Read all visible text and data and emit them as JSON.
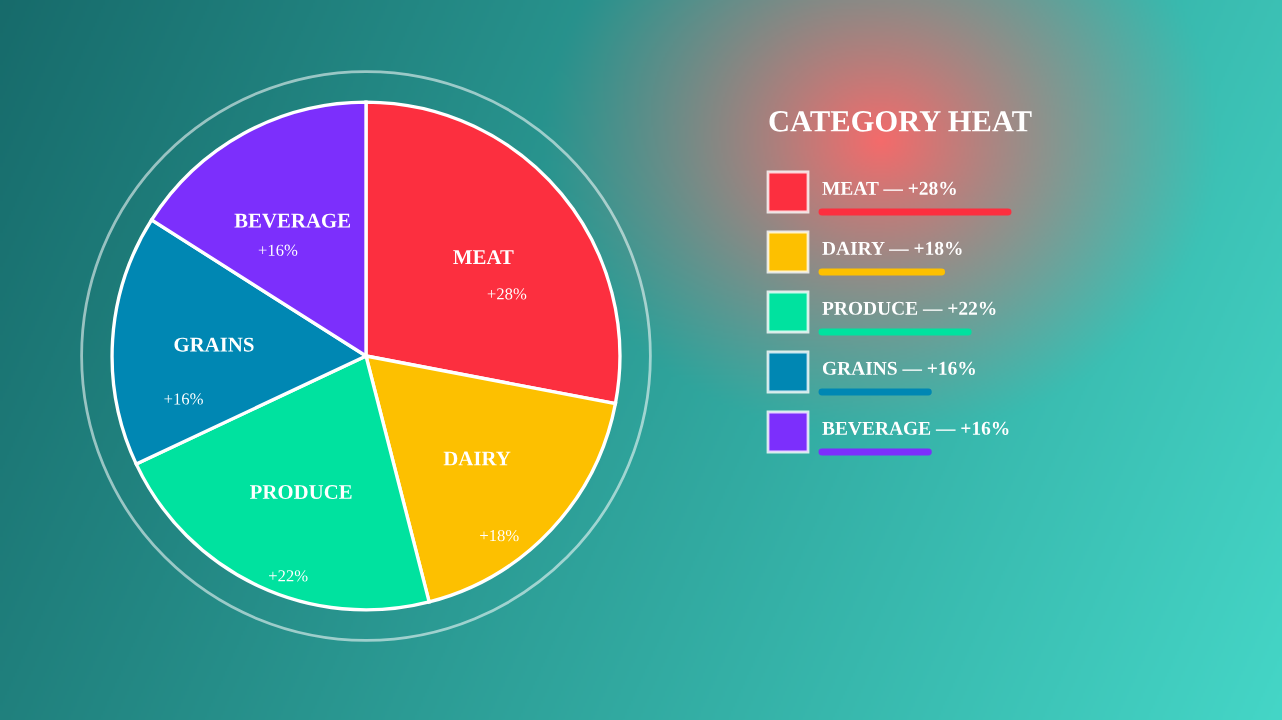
{
  "chart_data": {
    "type": "pie",
    "title": "CATEGORY HEAT",
    "categories": [
      "MEAT",
      "DAIRY",
      "PRODUCE",
      "GRAINS",
      "BEVERAGE"
    ],
    "values": [
      28,
      18,
      22,
      16,
      16
    ],
    "value_labels": [
      "+28%",
      "+18%",
      "+22%",
      "+16%",
      "+16%"
    ],
    "colors": [
      "#fc2f3f",
      "#fdc000",
      "#00e29f",
      "#0087b3",
      "#7c2ffc"
    ],
    "annotations": [
      "MEAT — +28%",
      "DAIRY — +18%",
      "PRODUCE — +22%",
      "GRAINS — +16%",
      "BEVERAGE — +16%"
    ]
  }
}
